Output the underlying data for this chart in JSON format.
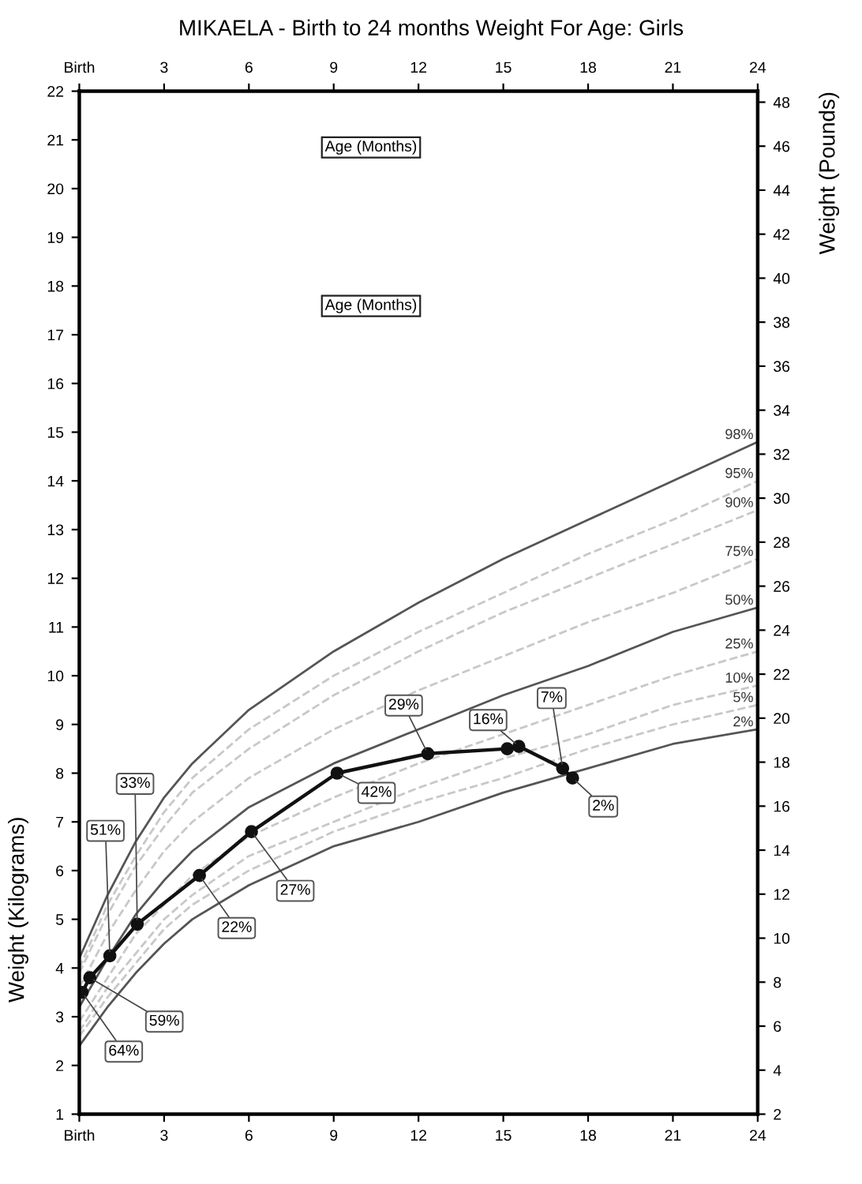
{
  "chart_data": {
    "type": "line",
    "title": "MIKAELA - Birth to 24 months Weight For Age: Girls",
    "ylabel": "Weight (Kilograms)",
    "y2label": "Weight (Pounds)",
    "annotations": [
      "Age (Months)",
      "Age (Months)",
      {
        "text": "64%",
        "x": 0.1,
        "y": 3.5
      },
      {
        "text": "59%",
        "x": 0.37,
        "y": 3.8
      },
      {
        "text": "51%",
        "x": 1.08,
        "y": 4.25
      },
      {
        "text": "33%",
        "x": 2.05,
        "y": 4.9
      },
      {
        "text": "22%",
        "x": 4.25,
        "y": 5.9
      },
      {
        "text": "27%",
        "x": 6.09,
        "y": 6.8
      },
      {
        "text": "42%",
        "x": 9.12,
        "y": 8.0
      },
      {
        "text": "29%",
        "x": 12.33,
        "y": 8.4
      },
      {
        "text": "16%",
        "x": 15.55,
        "y": 8.55
      },
      {
        "text": "7%",
        "x": 17.1,
        "y": 8.1
      },
      {
        "text": "2%",
        "x": 17.45,
        "y": 7.9
      }
    ],
    "xlim": [
      0,
      24
    ],
    "xticks": [
      {
        "value": 0,
        "label": "Birth"
      },
      3,
      6,
      9,
      12,
      15,
      18,
      21,
      24
    ],
    "x2lim": [
      0,
      24
    ],
    "x2ticks": [
      {
        "value": 0,
        "label": "Birth"
      },
      3,
      6,
      9,
      12,
      15,
      18,
      21,
      24
    ],
    "ylim": [
      1,
      22
    ],
    "yticks": [
      1,
      2,
      3,
      4,
      5,
      6,
      7,
      8,
      9,
      10,
      11,
      12,
      13,
      14,
      15,
      16,
      17,
      18,
      19,
      20,
      21,
      22
    ],
    "y2lim": [
      2,
      48.5
    ],
    "y2ticks": [
      2,
      4,
      6,
      8,
      10,
      12,
      14,
      16,
      18,
      20,
      22,
      24,
      26,
      28,
      30,
      32,
      34,
      36,
      38,
      40,
      42,
      44,
      46,
      48
    ],
    "series": [
      {
        "name": "98%",
        "color": "#555555",
        "line_style": "solid",
        "marker": "none",
        "x": [
          0,
          1,
          2,
          3,
          4,
          6,
          9,
          12,
          15,
          18,
          21,
          24
        ],
        "values": [
          4.2,
          5.5,
          6.6,
          7.5,
          8.2,
          9.3,
          10.5,
          11.5,
          12.4,
          13.2,
          14.0,
          14.8
        ]
      },
      {
        "name": "95%",
        "color": "#c8c8c8",
        "line_style": "dashed",
        "marker": "none",
        "x": [
          0,
          1,
          2,
          3,
          4,
          6,
          9,
          12,
          15,
          18,
          21,
          24
        ],
        "values": [
          4.0,
          5.3,
          6.3,
          7.2,
          7.9,
          8.9,
          10.0,
          10.9,
          11.7,
          12.5,
          13.2,
          14.0
        ]
      },
      {
        "name": "90%",
        "color": "#c8c8c8",
        "line_style": "dashed",
        "marker": "none",
        "x": [
          0,
          1,
          2,
          3,
          4,
          6,
          9,
          12,
          15,
          18,
          21,
          24
        ],
        "values": [
          3.9,
          5.1,
          6.1,
          6.9,
          7.6,
          8.5,
          9.6,
          10.5,
          11.3,
          12.0,
          12.7,
          13.4
        ]
      },
      {
        "name": "75%",
        "color": "#c8c8c8",
        "line_style": "dashed",
        "marker": "none",
        "x": [
          0,
          1,
          2,
          3,
          4,
          6,
          9,
          12,
          15,
          18,
          21,
          24
        ],
        "values": [
          3.6,
          4.7,
          5.6,
          6.4,
          7.0,
          7.9,
          8.9,
          9.7,
          10.4,
          11.1,
          11.7,
          12.4
        ]
      },
      {
        "name": "50%",
        "color": "#555555",
        "line_style": "solid",
        "marker": "none",
        "x": [
          0,
          1,
          2,
          3,
          4,
          6,
          9,
          12,
          15,
          18,
          21,
          24
        ],
        "values": [
          3.2,
          4.2,
          5.1,
          5.8,
          6.4,
          7.3,
          8.2,
          8.9,
          9.6,
          10.2,
          10.9,
          11.4
        ]
      },
      {
        "name": "25%",
        "color": "#c8c8c8",
        "line_style": "dashed",
        "marker": "none",
        "x": [
          0,
          1,
          2,
          3,
          4,
          6,
          9,
          12,
          15,
          18,
          21,
          24
        ],
        "values": [
          2.9,
          3.8,
          4.7,
          5.3,
          5.9,
          6.7,
          7.5,
          8.2,
          8.8,
          9.4,
          10.0,
          10.5
        ]
      },
      {
        "name": "10%",
        "color": "#c8c8c8",
        "line_style": "dashed",
        "marker": "none",
        "x": [
          0,
          1,
          2,
          3,
          4,
          6,
          9,
          12,
          15,
          18,
          21,
          24
        ],
        "values": [
          2.7,
          3.6,
          4.3,
          5.0,
          5.5,
          6.3,
          7.0,
          7.7,
          8.3,
          8.8,
          9.4,
          9.8
        ]
      },
      {
        "name": "5%",
        "color": "#c8c8c8",
        "line_style": "dashed",
        "marker": "none",
        "x": [
          0,
          1,
          2,
          3,
          4,
          6,
          9,
          12,
          15,
          18,
          21,
          24
        ],
        "values": [
          2.6,
          3.4,
          4.1,
          4.8,
          5.3,
          6.0,
          6.8,
          7.4,
          7.9,
          8.5,
          9.0,
          9.4
        ]
      },
      {
        "name": "2%",
        "color": "#555555",
        "line_style": "solid",
        "marker": "none",
        "x": [
          0,
          1,
          2,
          3,
          4,
          6,
          9,
          12,
          15,
          18,
          21,
          24
        ],
        "values": [
          2.4,
          3.2,
          3.9,
          4.5,
          5.0,
          5.7,
          6.5,
          7.0,
          7.6,
          8.1,
          8.6,
          8.9
        ]
      },
      {
        "color": "#111111",
        "line_style": "solid",
        "marker": "circle",
        "x": [
          0.1,
          0.37,
          1.08,
          2.05,
          4.25,
          6.09,
          9.12,
          12.33,
          15.14,
          15.55,
          17.1,
          17.45
        ],
        "values": [
          3.5,
          3.8,
          4.25,
          4.9,
          5.9,
          6.8,
          8.0,
          8.4,
          8.5,
          8.55,
          8.1,
          7.9
        ]
      }
    ]
  }
}
